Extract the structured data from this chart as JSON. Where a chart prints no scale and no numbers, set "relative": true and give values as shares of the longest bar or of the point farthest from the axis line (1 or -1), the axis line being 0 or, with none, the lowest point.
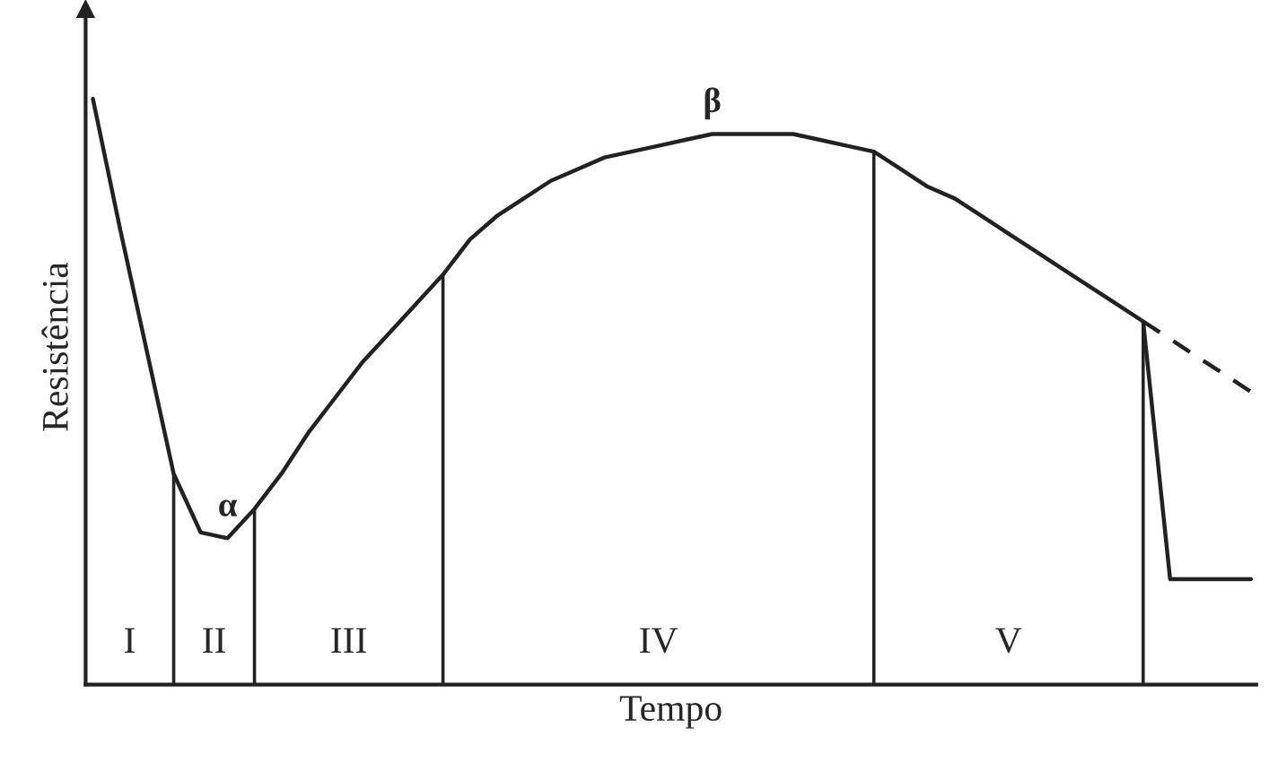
{
  "chart_data": {
    "type": "line",
    "relative": true,
    "xlabel": "Tempo",
    "ylabel": "Resistência",
    "tick_labels": false,
    "legend": false,
    "marker": "none",
    "categories": [
      null,
      null,
      null,
      null,
      null,
      null,
      null,
      null,
      null,
      null,
      null,
      null,
      null,
      null,
      null,
      null,
      null,
      null,
      null,
      null,
      null,
      null,
      null,
      null,
      null,
      null,
      null,
      null,
      null,
      null,
      null,
      null,
      null,
      null,
      null,
      null,
      null,
      null,
      null,
      null,
      null,
      null,
      null,
      null
    ],
    "series": [
      {
        "color": "#222222",
        "line_style": "solid",
        "values": [
          1.0,
          0.78,
          0.57,
          0.36,
          0.26,
          0.25,
          0.3,
          0.36,
          0.43,
          0.49,
          0.55,
          0.6,
          0.65,
          0.7,
          0.76,
          0.8,
          0.83,
          0.86,
          0.88,
          0.9,
          0.91,
          0.92,
          0.93,
          0.94,
          0.94,
          0.94,
          0.94,
          0.93,
          0.92,
          0.91,
          0.88,
          0.85,
          0.83,
          0.8,
          0.77,
          0.74,
          0.71,
          0.68,
          0.65,
          0.62,
          0.18,
          0.18,
          0.18,
          0.18
        ]
      },
      {
        "color": "#222222",
        "line_style": "dashed",
        "values": [
          null,
          null,
          null,
          null,
          null,
          null,
          null,
          null,
          null,
          null,
          null,
          null,
          null,
          null,
          null,
          null,
          null,
          null,
          null,
          null,
          null,
          null,
          null,
          null,
          null,
          null,
          null,
          null,
          null,
          null,
          null,
          null,
          null,
          null,
          null,
          null,
          null,
          null,
          null,
          0.62,
          0.59,
          0.56,
          0.53,
          0.5
        ]
      }
    ],
    "annotations": [
      "I",
      "II",
      "III",
      "IV",
      "V",
      {
        "text": "α",
        "y": 0.25
      },
      {
        "text": "β",
        "y": 0.94
      }
    ]
  }
}
